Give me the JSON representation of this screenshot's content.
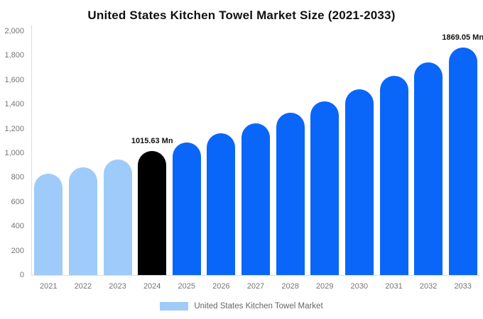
{
  "page": {
    "title": "United States Kitchen Towel Market Size (2021-2033)"
  },
  "chart_data": {
    "type": "bar",
    "title": "United States Kitchen Towel Market Size (2021-2033)",
    "categories": [
      "2021",
      "2022",
      "2023",
      "2024",
      "2025",
      "2026",
      "2027",
      "2028",
      "2029",
      "2030",
      "2031",
      "2032",
      "2033"
    ],
    "series": [
      {
        "name": "United States Kitchen Towel Market",
        "values": [
          828.8,
          886.9,
          949.1,
          1015.63,
          1086.8,
          1163.0,
          1244.6,
          1331.8,
          1425.2,
          1525.1,
          1632.0,
          1746.4,
          1869.05
        ]
      }
    ],
    "bar_colors": [
      "#9fcbfa",
      "#9fcbfa",
      "#9fcbfa",
      "#000000",
      "#0a66f9",
      "#0a66f9",
      "#0a66f9",
      "#0a66f9",
      "#0a66f9",
      "#0a66f9",
      "#0a66f9",
      "#0a66f9",
      "#0a66f9"
    ],
    "data_labels": [
      {
        "category": "2024",
        "text": "1015.63 Mn"
      },
      {
        "category": "2033",
        "text": "1869.05 Mn"
      }
    ],
    "xlabel": "",
    "ylabel": "",
    "ylim": [
      0,
      2000
    ],
    "ytick_interval": 200,
    "ytick_labels": [
      "0",
      "200",
      "400",
      "600",
      "800",
      "1,000",
      "1,200",
      "1,400",
      "1,600",
      "1,800",
      "2,000"
    ],
    "grid": false,
    "legend": {
      "position": "bottom",
      "entries": [
        {
          "label": "United States Kitchen Towel Market",
          "color": "#9fcbfa"
        }
      ]
    },
    "axis_color": "#dddddd",
    "tick_label_color": "#757575",
    "title_color": "#111111"
  }
}
